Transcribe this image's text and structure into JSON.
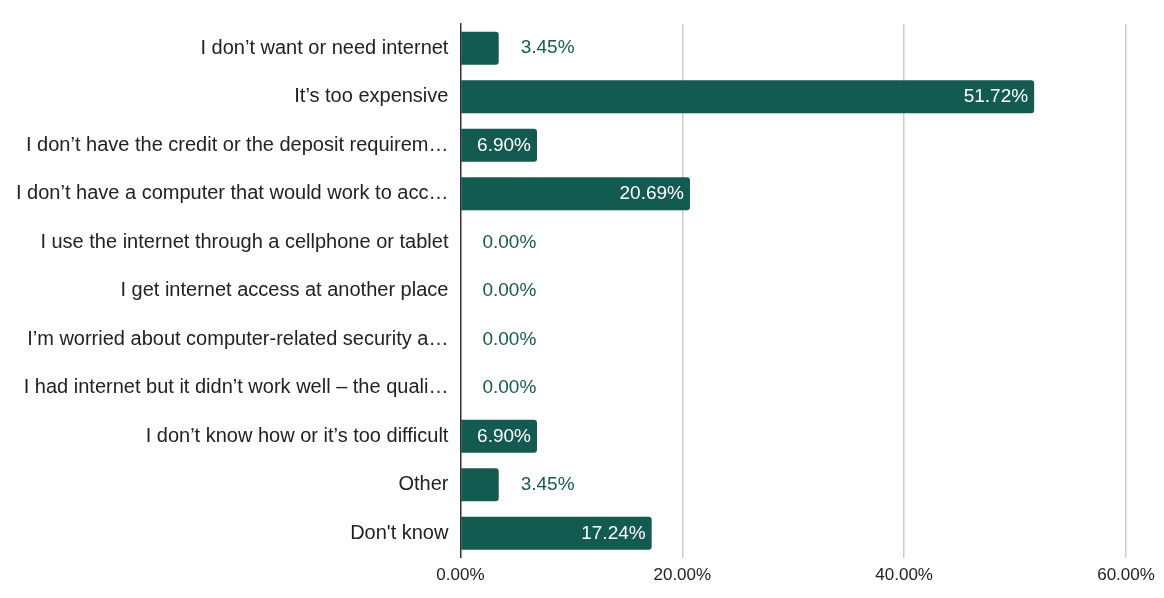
{
  "chart_data": {
    "type": "bar",
    "orientation": "horizontal",
    "categories": [
      "I don’t want or need internet",
      "It’s too expensive",
      "I don’t have the credit or the deposit requirem…",
      "I don’t have a computer that would work to acc…",
      "I use the internet through a cellphone or tablet",
      "I get internet access at another place",
      "I’m worried about computer-related security a…",
      "I had internet but it didn’t work well – the quali…",
      "I don’t know how or it’s too difficult",
      "Other",
      "Don't know"
    ],
    "values": [
      3.45,
      51.72,
      6.9,
      20.69,
      0.0,
      0.0,
      0.0,
      0.0,
      6.9,
      3.45,
      17.24
    ],
    "value_labels": [
      "3.45%",
      "51.72%",
      "6.90%",
      "20.69%",
      "0.00%",
      "0.00%",
      "0.00%",
      "0.00%",
      "6.90%",
      "3.45%",
      "17.24%"
    ],
    "color": "#135a50",
    "xlim": [
      0,
      60
    ],
    "xticks": [
      {
        "value": 0,
        "label": "0.00%"
      },
      {
        "value": 20,
        "label": "20.00%"
      },
      {
        "value": 40,
        "label": "40.00%"
      },
      {
        "value": 60,
        "label": "60.00%"
      }
    ],
    "grid": "x",
    "legend": false
  }
}
